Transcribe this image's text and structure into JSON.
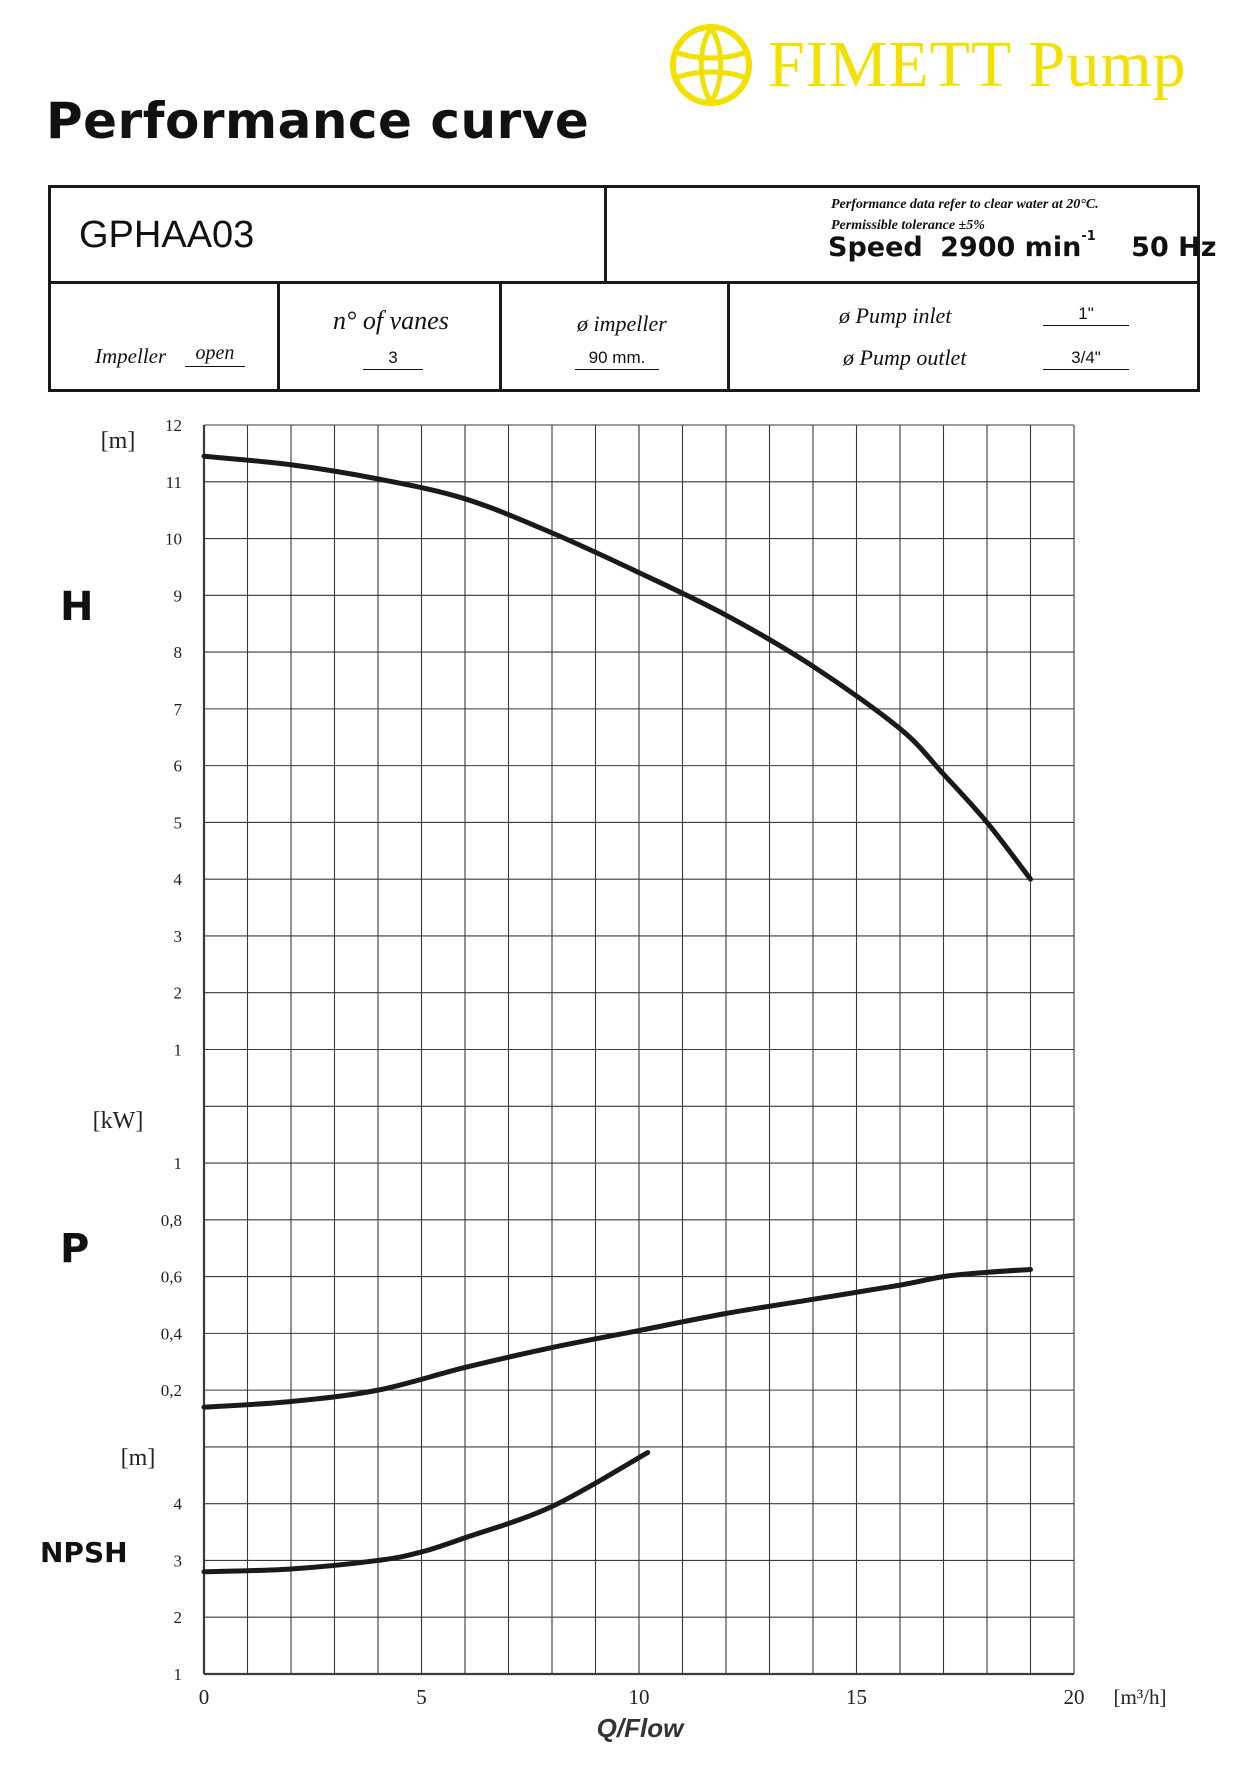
{
  "logo": {
    "text": "FIMETT Pump",
    "color": "#f2e100"
  },
  "page_title": "Performance curve",
  "spec": {
    "model": "GPHAA03",
    "note_line1": "Performance data refer to clear water at 20°C.",
    "note_line2": "Permissible tolerance ±5%",
    "speed_label": "Speed",
    "speed_value": "2900 min",
    "speed_exp": "-1",
    "frequency": "50 Hz",
    "impeller_label": "Impeller",
    "impeller_value": "open",
    "vanes_label": "n° of vanes",
    "vanes_value": "3",
    "impeller_dia_label": "ø impeller",
    "impeller_dia_value": "90 mm.",
    "inlet_label": "ø Pump inlet",
    "inlet_value": "1\"",
    "outlet_label": "ø Pump outlet",
    "outlet_value": "3/4\""
  },
  "chart_data": [
    {
      "type": "line",
      "name_label": "H",
      "unit_label": "[m]",
      "ylim": [
        0,
        12
      ],
      "yticks": [
        "1",
        "2",
        "3",
        "4",
        "5",
        "6",
        "7",
        "8",
        "9",
        "10",
        "11",
        "12"
      ],
      "grid": true,
      "x": [
        0,
        2,
        4,
        6,
        8,
        10,
        12,
        14,
        16,
        17,
        18,
        19
      ],
      "y": [
        11.45,
        11.3,
        11.05,
        10.7,
        10.1,
        9.4,
        8.65,
        7.75,
        6.65,
        5.85,
        5.0,
        4.0
      ]
    },
    {
      "type": "line",
      "name_label": "P",
      "unit_label": "[kW]",
      "ylim": [
        0,
        1.2
      ],
      "yticks": [
        "0,2",
        "0,4",
        "0,6",
        "0,8",
        "1"
      ],
      "grid": true,
      "x": [
        0,
        2,
        4,
        6,
        8,
        10,
        12,
        14,
        16,
        17,
        18,
        19
      ],
      "y": [
        0.14,
        0.16,
        0.2,
        0.28,
        0.35,
        0.41,
        0.47,
        0.52,
        0.57,
        0.6,
        0.615,
        0.625
      ]
    },
    {
      "type": "line",
      "name_label": "NPSH",
      "unit_label": "[m]",
      "ylim": [
        1,
        5
      ],
      "yticks": [
        "1",
        "2",
        "3",
        "4"
      ],
      "grid": true,
      "x": [
        0,
        2,
        4,
        5,
        6,
        8,
        10.2
      ],
      "y": [
        2.8,
        2.85,
        3.0,
        3.15,
        3.4,
        3.95,
        4.9
      ]
    }
  ],
  "x_axis": {
    "xlim": [
      0,
      20
    ],
    "ticks": [
      "0",
      "5",
      "10",
      "15",
      "20"
    ],
    "unit_label": "[m³/h]",
    "title": "Q/Flow"
  }
}
